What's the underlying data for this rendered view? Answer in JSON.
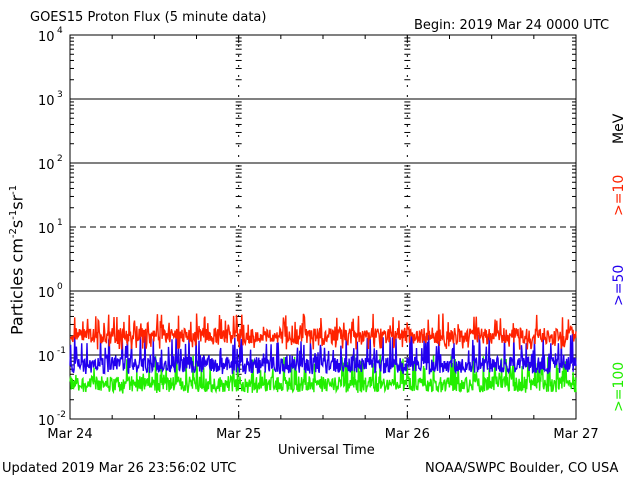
{
  "header": {
    "title": "GOES15 Proton Flux (5 minute data)",
    "begin": "Begin: 2019 Mar 24 0000 UTC"
  },
  "footer": {
    "updated": "Updated 2019 Mar 26 23:56:02 UTC",
    "source": "NOAA/SWPC Boulder, CO USA"
  },
  "legend": {
    "unit": "MeV",
    "items": [
      {
        "label": ">=10",
        "color": "#ff2200"
      },
      {
        "label": ">=50",
        "color": "#2200ee"
      },
      {
        "label": ">=100",
        "color": "#22ee00"
      }
    ]
  },
  "chart_data": {
    "type": "line",
    "title": "GOES15 Proton Flux (5 minute data)",
    "xlabel": "Universal Time",
    "ylabel": "Particles cm⁻²s⁻¹sr⁻¹",
    "ylabel_parts": {
      "base": "Particles cm",
      "e1": "-2",
      "m1": "s",
      "e2": "-1",
      "m2": "sr",
      "e3": "-1"
    },
    "y_scale": "log",
    "ylim": [
      0.01,
      10000
    ],
    "x_ticks": [
      "Mar 24",
      "Mar 25",
      "Mar 26",
      "Mar 27"
    ],
    "xlim": [
      "2019-03-24 00:00",
      "2019-03-27 00:00"
    ],
    "y_ticks": [
      {
        "value": 0.01,
        "base": "10",
        "exp": "-2"
      },
      {
        "value": 0.1,
        "base": "10",
        "exp": "-1"
      },
      {
        "value": 1,
        "base": "10",
        "exp": "0"
      },
      {
        "value": 10,
        "base": "10",
        "exp": "1"
      },
      {
        "value": 100,
        "base": "10",
        "exp": "2"
      },
      {
        "value": 1000,
        "base": "10",
        "exp": "3"
      },
      {
        "value": 10000,
        "base": "10",
        "exp": "4"
      }
    ],
    "threshold_lines": [
      {
        "value": 10,
        "style": "dashed"
      }
    ],
    "series": [
      {
        "name": ">=10 MeV",
        "color": "#ff2200",
        "typical": 0.2,
        "range": [
          0.12,
          0.45
        ]
      },
      {
        "name": ">=50 MeV",
        "color": "#2200ee",
        "typical": 0.07,
        "range": [
          0.05,
          0.22
        ]
      },
      {
        "name": ">=100 MeV",
        "color": "#22ee00",
        "typical": 0.035,
        "range": [
          0.025,
          0.1
        ]
      }
    ]
  }
}
